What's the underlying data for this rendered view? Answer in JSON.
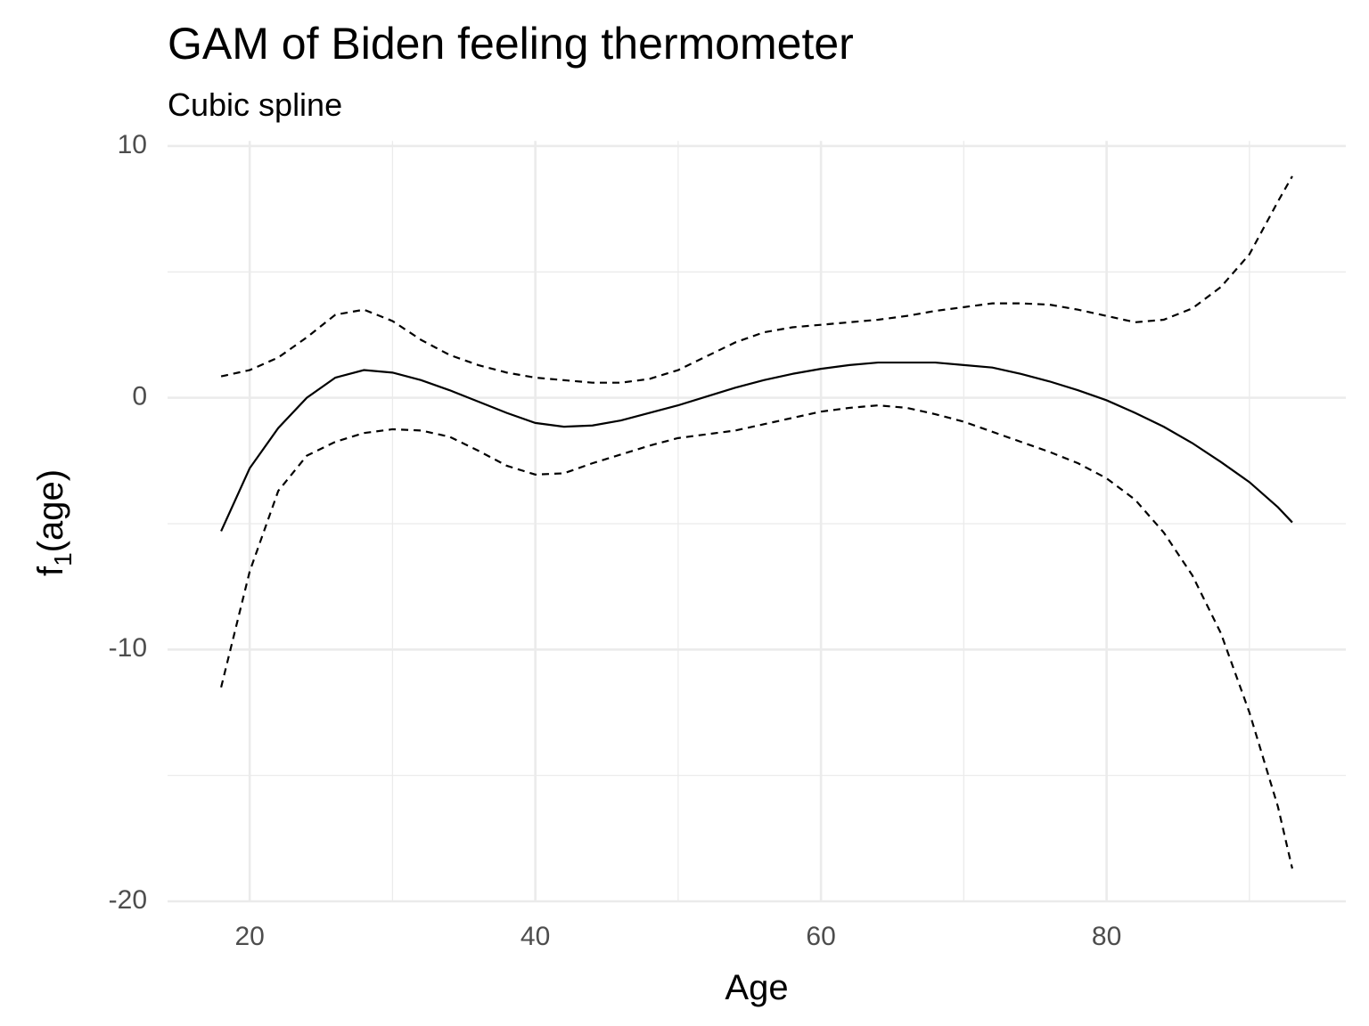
{
  "chart_data": {
    "type": "line",
    "title": "GAM of Biden feeling thermometer",
    "subtitle": "Cubic spline",
    "x_label": "Age",
    "y_label": {
      "base": "f",
      "subscript": "1",
      "rest": "(age)"
    },
    "x": [
      18,
      20,
      22,
      24,
      26,
      28,
      30,
      32,
      34,
      36,
      38,
      40,
      42,
      44,
      46,
      48,
      50,
      52,
      54,
      56,
      58,
      60,
      62,
      64,
      66,
      68,
      70,
      72,
      74,
      76,
      78,
      80,
      82,
      84,
      86,
      88,
      90,
      92,
      93
    ],
    "series": [
      {
        "color": "#000000",
        "dashed": false,
        "values": [
          -5.3,
          -2.8,
          -1.2,
          0.0,
          0.8,
          1.1,
          1.0,
          0.7,
          0.3,
          -0.15,
          -0.6,
          -1.0,
          -1.15,
          -1.1,
          -0.9,
          -0.6,
          -0.3,
          0.05,
          0.4,
          0.7,
          0.95,
          1.15,
          1.3,
          1.4,
          1.4,
          1.4,
          1.3,
          1.2,
          0.95,
          0.65,
          0.3,
          -0.1,
          -0.6,
          -1.15,
          -1.8,
          -2.55,
          -3.35,
          -4.35,
          -4.95
        ]
      },
      {
        "color": "#000000",
        "dashed": true,
        "values": [
          0.85,
          1.1,
          1.6,
          2.4,
          3.3,
          3.5,
          3.05,
          2.3,
          1.7,
          1.3,
          1.0,
          0.8,
          0.7,
          0.6,
          0.6,
          0.75,
          1.1,
          1.65,
          2.2,
          2.6,
          2.8,
          2.9,
          3.0,
          3.1,
          3.25,
          3.45,
          3.6,
          3.75,
          3.75,
          3.7,
          3.5,
          3.25,
          3.0,
          3.1,
          3.55,
          4.4,
          5.7,
          7.8,
          8.8
        ]
      },
      {
        "color": "#000000",
        "dashed": true,
        "values": [
          -11.5,
          -6.9,
          -3.7,
          -2.3,
          -1.75,
          -1.4,
          -1.25,
          -1.3,
          -1.55,
          -2.1,
          -2.7,
          -3.05,
          -3.0,
          -2.6,
          -2.25,
          -1.9,
          -1.6,
          -1.45,
          -1.3,
          -1.05,
          -0.8,
          -0.55,
          -0.4,
          -0.3,
          -0.4,
          -0.65,
          -0.95,
          -1.35,
          -1.75,
          -2.15,
          -2.6,
          -3.2,
          -4.05,
          -5.35,
          -7.05,
          -9.35,
          -12.5,
          -16.25,
          -18.7
        ]
      }
    ],
    "xlim": [
      14.25,
      96.75
    ],
    "ylim": [
      -20,
      10.2
    ],
    "xticks": [
      20,
      40,
      60,
      80
    ],
    "yticks": [
      -20,
      -10,
      0,
      10
    ],
    "xminorticks": [
      30,
      50,
      70,
      90
    ],
    "yminorticks": [
      -15,
      -5,
      5
    ],
    "grid": true
  }
}
